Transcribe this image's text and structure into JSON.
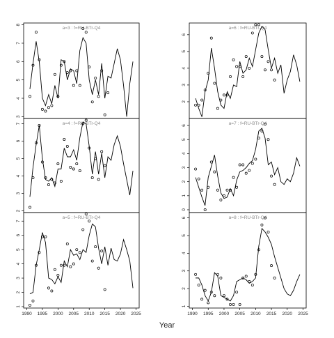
{
  "xlabel": "Year",
  "chart_data": [
    {
      "type": "line",
      "title": "a=3  :  f=RU-BTr-Q4",
      "xlim": [
        1989,
        2026
      ],
      "ylim": [
        2.9,
        8.1
      ],
      "yticks": [
        3,
        4,
        5,
        6,
        7,
        8
      ],
      "x": [
        1991,
        1992,
        1993,
        1994,
        1995,
        1996,
        1997,
        1998,
        1999,
        2000,
        2001,
        2002,
        2003,
        2004,
        2005,
        2006,
        2007,
        2008,
        2009,
        2010,
        2011,
        2012,
        2013,
        2014,
        2015,
        2016,
        2017,
        2018,
        2019,
        2020,
        2021,
        2022,
        2023,
        2024
      ],
      "series": [
        {
          "style": "line",
          "color": "#000000",
          "values": [
            4.5,
            5.9,
            7.1,
            6.0,
            4.0,
            3.6,
            4.2,
            3.7,
            4.7,
            4.0,
            6.1,
            6.0,
            5.0,
            5.6,
            5.5,
            4.8,
            6.6,
            7.3,
            7.0,
            5.0,
            4.2,
            5.0,
            4.2,
            5.9,
            4.0,
            5.2,
            5.1,
            5.9,
            6.7,
            6.1,
            4.7,
            3.0,
            4.8,
            6.0
          ]
        },
        {
          "style": "points",
          "color": "#000000",
          "values": [
            4.1,
            5.8,
            7.6,
            6.1,
            3.4,
            3.3,
            3.5,
            3.6,
            5.3,
            4.1,
            5.8,
            6.0,
            5.4,
            5.5,
            4.7,
            5.5,
            4.7,
            7.8,
            7.6,
            5.7,
            3.8,
            5.1,
            4.1,
            5.5,
            3.1,
            4.3,
            null,
            null,
            null,
            null,
            null,
            null,
            null,
            null
          ]
        }
      ]
    },
    {
      "type": "line",
      "title": "a=6  :  f=RU-BTr-Q4",
      "xlim": [
        1989,
        2026
      ],
      "ylim": [
        1.0,
        6.7
      ],
      "yticks": [
        2,
        3,
        4,
        5,
        6
      ],
      "x": [
        1991,
        1992,
        1993,
        1994,
        1995,
        1996,
        1997,
        1998,
        1999,
        2000,
        2001,
        2002,
        2003,
        2004,
        2005,
        2006,
        2007,
        2008,
        2009,
        2010,
        2011,
        2012,
        2013,
        2014,
        2015,
        2016,
        2017,
        2018,
        2019,
        2020,
        2021,
        2022,
        2023,
        2024
      ],
      "series": [
        {
          "style": "line",
          "color": "#000000",
          "values": [
            2.2,
            1.6,
            1.1,
            2.6,
            3.3,
            5.2,
            4.0,
            2.6,
            1.8,
            1.6,
            2.6,
            2.2,
            3.0,
            2.9,
            4.4,
            3.7,
            3.9,
            4.6,
            4.1,
            5.1,
            6.1,
            6.5,
            6.3,
            5.1,
            4.0,
            4.6,
            3.7,
            4.2,
            2.5,
            3.3,
            3.8,
            4.8,
            4.2,
            3.2
          ]
        },
        {
          "style": "points",
          "color": "#000000",
          "values": [
            1.8,
            1.8,
            2.1,
            2.7,
            3.7,
            5.8,
            3.1,
            1.6,
            2.1,
            2.4,
            2.4,
            3.5,
            4.5,
            4.1,
            4.1,
            3.5,
            4.7,
            4.0,
            6.1,
            6.6,
            6.6,
            4.7,
            3.9,
            4.4,
            3.9,
            3.3,
            null,
            null,
            null,
            null,
            null,
            null,
            null,
            null
          ]
        }
      ]
    },
    {
      "type": "line",
      "title": "a=4  :  f=RU-BTr-Q4",
      "xlim": [
        1989,
        2026
      ],
      "ylim": [
        1.9,
        7.3
      ],
      "yticks": [
        2,
        3,
        4,
        5,
        6,
        7
      ],
      "x": [
        1991,
        1992,
        1993,
        1994,
        1995,
        1996,
        1997,
        1998,
        1999,
        2000,
        2001,
        2002,
        2003,
        2004,
        2005,
        2006,
        2007,
        2008,
        2009,
        2010,
        2011,
        2012,
        2013,
        2014,
        2015,
        2016,
        2017,
        2018,
        2019,
        2020,
        2021,
        2022,
        2023,
        2024
      ],
      "series": [
        {
          "style": "line",
          "color": "#000000",
          "values": [
            2.8,
            4.5,
            5.8,
            6.9,
            5.0,
            3.8,
            3.7,
            3.9,
            3.4,
            4.4,
            4.4,
            5.6,
            5.1,
            5.1,
            5.5,
            4.9,
            6.2,
            7.1,
            7.0,
            5.7,
            4.1,
            5.4,
            4.1,
            5.3,
            3.9,
            5.1,
            4.9,
            5.8,
            6.3,
            5.7,
            4.7,
            3.8,
            2.9,
            4.3
          ]
        },
        {
          "style": "points",
          "color": "#000000",
          "values": [
            2.2,
            3.9,
            5.9,
            6.9,
            4.8,
            3.9,
            3.5,
            3.8,
            3.6,
            4.7,
            3.7,
            6.1,
            5.7,
            4.5,
            4.4,
            4.7,
            4.3,
            7.0,
            7.2,
            5.6,
            3.9,
            5.0,
            3.8,
            5.4,
            4.6,
            null,
            null,
            null,
            null,
            null,
            null,
            null,
            null,
            null
          ]
        }
      ]
    },
    {
      "type": "line",
      "title": "a=7  :  f=RU-BTr-Q4",
      "xlim": [
        1989,
        2026
      ],
      "ylim": [
        -0.2,
        6.5
      ],
      "yticks": [
        0,
        1,
        2,
        3,
        4,
        5,
        6
      ],
      "x": [
        1991,
        1992,
        1993,
        1994,
        1995,
        1996,
        1997,
        1998,
        1999,
        2000,
        2001,
        2002,
        2003,
        2004,
        2005,
        2006,
        2007,
        2008,
        2009,
        2010,
        2011,
        2012,
        2013,
        2014,
        2015,
        2016,
        2017,
        2018,
        2019,
        2020,
        2021,
        2022,
        2023,
        2024
      ],
      "series": [
        {
          "style": "line",
          "color": "#000000",
          "values": [
            2.3,
            1.6,
            0.9,
            0.3,
            2.3,
            3.1,
            3.9,
            2.4,
            1.2,
            0.8,
            0.9,
            1.5,
            1.0,
            2.1,
            2.7,
            2.8,
            3.0,
            3.3,
            3.5,
            4.3,
            5.6,
            5.8,
            5.1,
            3.2,
            3.4,
            2.5,
            3.0,
            2.0,
            1.8,
            2.2,
            2.0,
            2.6,
            3.7,
            3.1
          ]
        },
        {
          "style": "points",
          "color": "#000000",
          "values": [
            2.9,
            2.2,
            1.4,
            0.0,
            1.6,
            3.4,
            2.7,
            1.4,
            0.7,
            1.0,
            1.4,
            1.4,
            2.3,
            1.6,
            3.2,
            3.2,
            2.6,
            2.8,
            3.3,
            3.6,
            5.1,
            5.6,
            6.1,
            5.0,
            2.4,
            1.8,
            null,
            null,
            null,
            null,
            null,
            null,
            null,
            null
          ]
        }
      ]
    },
    {
      "type": "line",
      "title": "a=5  :  f=RU-BTr-Q4",
      "xlim": [
        1989,
        2026
      ],
      "ylim": [
        0.9,
        7.6
      ],
      "yticks": [
        1,
        2,
        3,
        4,
        5,
        6,
        7
      ],
      "xticks": [
        1990,
        1995,
        2000,
        2005,
        2010,
        2015,
        2020,
        2025
      ],
      "x": [
        1991,
        1992,
        1993,
        1994,
        1995,
        1996,
        1997,
        1998,
        1999,
        2000,
        2001,
        2002,
        2003,
        2004,
        2005,
        2006,
        2007,
        2008,
        2009,
        2010,
        2011,
        2012,
        2013,
        2014,
        2015,
        2016,
        2017,
        2018,
        2019,
        2020,
        2021,
        2022,
        2023,
        2024
      ],
      "series": [
        {
          "style": "line",
          "color": "#000000",
          "values": [
            1.9,
            2.0,
            3.9,
            5.0,
            6.2,
            5.5,
            3.0,
            2.9,
            2.6,
            3.1,
            2.7,
            4.2,
            3.8,
            5.0,
            4.6,
            4.7,
            4.3,
            5.0,
            4.8,
            6.0,
            6.8,
            6.6,
            5.1,
            4.0,
            5.2,
            3.9,
            5.1,
            4.3,
            4.2,
            4.7,
            5.7,
            5.0,
            4.2,
            2.3
          ]
        },
        {
          "style": "points",
          "color": "#000000",
          "values": [
            1.1,
            1.4,
            3.9,
            4.8,
            5.9,
            5.9,
            2.3,
            2.1,
            3.6,
            3.2,
            3.9,
            3.9,
            5.4,
            3.8,
            4.0,
            5.0,
            4.8,
            6.4,
            7.5,
            7.0,
            4.2,
            5.2,
            3.7,
            4.9,
            2.2,
            null,
            null,
            null,
            null,
            null,
            null,
            null,
            null,
            null
          ]
        }
      ]
    },
    {
      "type": "line",
      "title": "a=8  :  f=RU-BTr-Q4",
      "xlim": [
        1989,
        2026
      ],
      "ylim": [
        0.9,
        6.3
      ],
      "yticks": [
        1,
        2,
        3,
        4,
        5,
        6
      ],
      "xticks": [
        1990,
        1995,
        2000,
        2005,
        2010,
        2015,
        2020,
        2025
      ],
      "x": [
        1991,
        1992,
        1993,
        1994,
        1995,
        1996,
        1997,
        1998,
        1999,
        2000,
        2001,
        2002,
        2003,
        2004,
        2005,
        2006,
        2007,
        2008,
        2009,
        2010,
        2011,
        2012,
        2013,
        2014,
        2015,
        2016,
        2017,
        2018,
        2019,
        2020,
        2021,
        2022,
        2023,
        2024
      ],
      "series": [
        {
          "style": "line",
          "color": "#000000",
          "values": [
            2.6,
            2.6,
            2.2,
            1.6,
            1.3,
            1.8,
            2.9,
            2.7,
            1.6,
            1.5,
            1.4,
            1.3,
            1.6,
            2.4,
            2.5,
            2.6,
            2.5,
            2.3,
            2.4,
            2.6,
            4.4,
            5.4,
            5.2,
            4.9,
            4.5,
            3.8,
            3.2,
            2.6,
            2.0,
            1.7,
            1.6,
            1.9,
            2.4,
            2.8
          ]
        },
        {
          "style": "points",
          "color": "#000000",
          "values": [
            2.8,
            2.2,
            1.4,
            1.9,
            1.2,
            1.8,
            1.6,
            2.8,
            2.6,
            1.6,
            1.4,
            1.1,
            1.1,
            1.8,
            1.1,
            2.6,
            2.7,
            2.4,
            2.2,
            2.8,
            4.2,
            5.6,
            6.0,
            5.2,
            3.3,
            2.6,
            null,
            null,
            null,
            null,
            null,
            null,
            null,
            null
          ]
        }
      ]
    }
  ]
}
